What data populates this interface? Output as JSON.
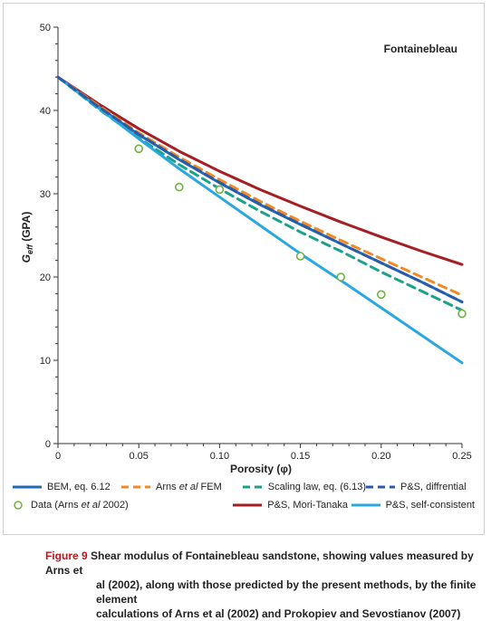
{
  "chart_data": {
    "type": "line",
    "annotation": "Fontainebleau",
    "xlabel": "Porosity (φ)",
    "ylabel_main": "G",
    "ylabel_sub": "eff",
    "ylabel_unit": " (GPA)",
    "xlim": [
      0,
      0.25
    ],
    "ylim": [
      0,
      50
    ],
    "xticks": [
      "0",
      "0.05",
      "0.10",
      "0.15",
      "0.20",
      "0.25"
    ],
    "xtick_values": [
      0,
      0.05,
      0.1,
      0.15,
      0.2,
      0.25
    ],
    "yticks": [
      "0",
      "10",
      "20",
      "30",
      "40",
      "50"
    ],
    "ytick_values": [
      0,
      10,
      20,
      30,
      40,
      50
    ],
    "grid": false,
    "legend_position": "bottom",
    "x": [
      0,
      0.025,
      0.05,
      0.075,
      0.1,
      0.125,
      0.15,
      0.175,
      0.2,
      0.225,
      0.25
    ],
    "series": [
      {
        "name": "BEM, eq. 6.12",
        "color": "#1f6bb4",
        "style": "solid",
        "values": [
          44,
          40.4,
          37.1,
          34.1,
          31.3,
          28.7,
          26.3,
          24.0,
          21.7,
          19.4,
          17.0
        ]
      },
      {
        "name": "Arns et al FEM",
        "color": "#f08a24",
        "style": "dashed",
        "values": [
          44,
          40.6,
          37.3,
          34.4,
          31.7,
          29.1,
          26.7,
          24.4,
          22.2,
          20.0,
          17.8
        ]
      },
      {
        "name": "Scaling law, eq. (6.13)",
        "color": "#1aa28a",
        "style": "dashed",
        "values": [
          44,
          40.2,
          36.7,
          33.5,
          30.6,
          27.9,
          25.4,
          23.1,
          20.6,
          18.3,
          16.0
        ]
      },
      {
        "name": "P&S, diffrential",
        "color": "#2b5aa8",
        "style": "dashed",
        "values": [
          44,
          40.45,
          37.15,
          34.15,
          31.35,
          28.75,
          26.35,
          24.0,
          21.7,
          19.4,
          17.0
        ]
      },
      {
        "name": "P&S, Mori-Tanaka",
        "color": "#a51e22",
        "style": "solid",
        "values": [
          44,
          40.8,
          37.8,
          35.1,
          32.7,
          30.5,
          28.5,
          26.6,
          24.8,
          23.1,
          21.5
        ]
      },
      {
        "name": "P&S, self-consistent",
        "color": "#29a8e0",
        "style": "solid",
        "values": [
          44,
          40.3,
          36.6,
          33.0,
          29.6,
          26.2,
          22.8,
          19.6,
          16.3,
          13.0,
          9.7
        ]
      }
    ],
    "data_points": {
      "name": "Data (Arns et al 2002)",
      "color": "#6db33f",
      "x": [
        0.05,
        0.075,
        0.1,
        0.15,
        0.175,
        0.2,
        0.25
      ],
      "y": [
        35.4,
        30.8,
        30.5,
        22.5,
        20.0,
        17.9,
        15.6
      ]
    }
  },
  "legend": {
    "bem": "BEM, eq. 6.12",
    "arns_pre": "Arns ",
    "arns_italic": "et al",
    "arns_post": " FEM",
    "scaling": "Scaling law, eq. (6.13)",
    "ps_diff": "P&S, diffrential",
    "data_pre": "Data (Arns ",
    "data_italic": "et al",
    "data_post": " 2002)",
    "ps_mt": "P&S, Mori-Tanaka",
    "ps_sc": "P&S, self-consistent"
  },
  "caption": {
    "fig": "Figure 9",
    "line1": " Shear modulus of Fontainebleau sandstone, showing values measured by Arns et",
    "line2": "al (2002), along with those predicted by the present methods, by the finite element",
    "line3": "calculations of Arns et al (2002) and Prokopiev and Sevostianov (2007)"
  }
}
